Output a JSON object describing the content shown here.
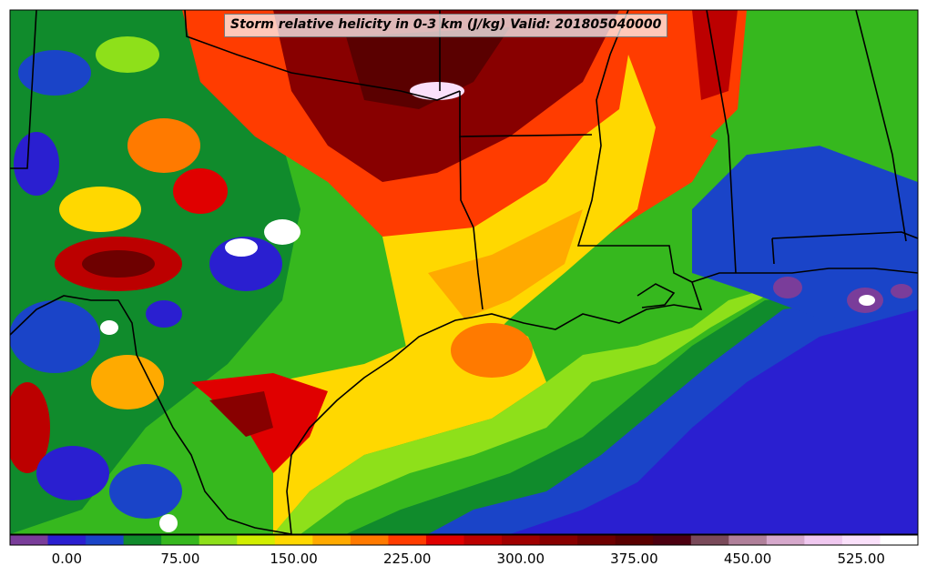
{
  "title": "Storm relative helicity in 0-3 km (J/kg) Valid: 201805040000",
  "colorbar": {
    "colors": [
      "#7a3d9a",
      "#2a1fd0",
      "#1a44c8",
      "#108b2c",
      "#36b81e",
      "#8ee01a",
      "#d2ee00",
      "#ffd800",
      "#ffaa00",
      "#ff7a00",
      "#ff3c00",
      "#e00000",
      "#bc0000",
      "#a00000",
      "#880000",
      "#6e0000",
      "#5a0000",
      "#4c0010",
      "#7a4a5a",
      "#b0809a",
      "#d6a8cc",
      "#f0c8f0",
      "#fae0fa",
      "#ffffff"
    ],
    "tick_labels": [
      "0.00",
      "75.00",
      "150.00",
      "225.00",
      "300.00",
      "375.00",
      "450.00",
      "525.00"
    ],
    "tick_values": [
      0,
      75,
      150,
      225,
      300,
      375,
      450,
      525
    ],
    "min": -37.5,
    "max": 562.5
  }
}
